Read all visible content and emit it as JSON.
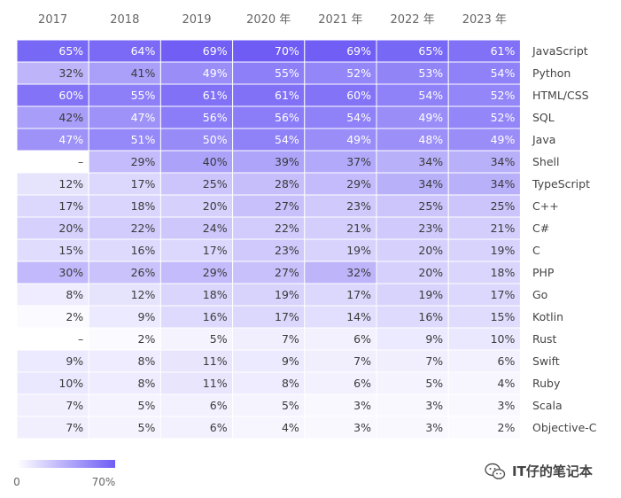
{
  "chart_data": {
    "type": "heatmap",
    "columns": [
      "2017",
      "2018",
      "2019",
      "2020 年",
      "2021 年",
      "2022 年",
      "2023 年"
    ],
    "rows": [
      {
        "name": "JavaScript",
        "values": [
          65,
          64,
          69,
          70,
          69,
          65,
          61
        ]
      },
      {
        "name": "Python",
        "values": [
          32,
          41,
          49,
          55,
          52,
          53,
          54
        ]
      },
      {
        "name": "HTML/CSS",
        "values": [
          60,
          55,
          61,
          61,
          60,
          54,
          52
        ]
      },
      {
        "name": "SQL",
        "values": [
          42,
          47,
          56,
          56,
          54,
          49,
          52
        ]
      },
      {
        "name": "Java",
        "values": [
          47,
          51,
          50,
          54,
          49,
          48,
          49
        ]
      },
      {
        "name": "Shell",
        "values": [
          null,
          29,
          40,
          39,
          37,
          34,
          34
        ]
      },
      {
        "name": "TypeScript",
        "values": [
          12,
          17,
          25,
          28,
          29,
          34,
          34
        ]
      },
      {
        "name": "C++",
        "values": [
          17,
          18,
          20,
          27,
          23,
          25,
          25
        ]
      },
      {
        "name": "C#",
        "values": [
          20,
          22,
          24,
          22,
          21,
          23,
          21
        ]
      },
      {
        "name": "C",
        "values": [
          15,
          16,
          17,
          23,
          19,
          20,
          19
        ]
      },
      {
        "name": "PHP",
        "values": [
          30,
          26,
          29,
          27,
          32,
          20,
          18
        ]
      },
      {
        "name": "Go",
        "values": [
          8,
          12,
          18,
          19,
          17,
          19,
          17
        ]
      },
      {
        "name": "Kotlin",
        "values": [
          2,
          9,
          16,
          17,
          14,
          16,
          15
        ]
      },
      {
        "name": "Rust",
        "values": [
          null,
          2,
          5,
          7,
          6,
          9,
          10
        ]
      },
      {
        "name": "Swift",
        "values": [
          9,
          8,
          11,
          9,
          7,
          7,
          6
        ]
      },
      {
        "name": "Ruby",
        "values": [
          10,
          8,
          11,
          8,
          6,
          5,
          4
        ]
      },
      {
        "name": "Scala",
        "values": [
          7,
          5,
          6,
          5,
          3,
          3,
          3
        ]
      },
      {
        "name": "Objective-C",
        "values": [
          7,
          5,
          6,
          4,
          3,
          3,
          2
        ]
      }
    ],
    "value_suffix": "%",
    "missing_label": "–",
    "scale": {
      "min": 0,
      "max": 70,
      "min_label": "0",
      "max_label": "70%"
    },
    "colors": {
      "low": "#ffffff",
      "high": "#6e5cf5",
      "grid": "#ffffff"
    }
  },
  "watermark": {
    "text": "IT仔的笔记本",
    "icon": "wechat-icon"
  }
}
